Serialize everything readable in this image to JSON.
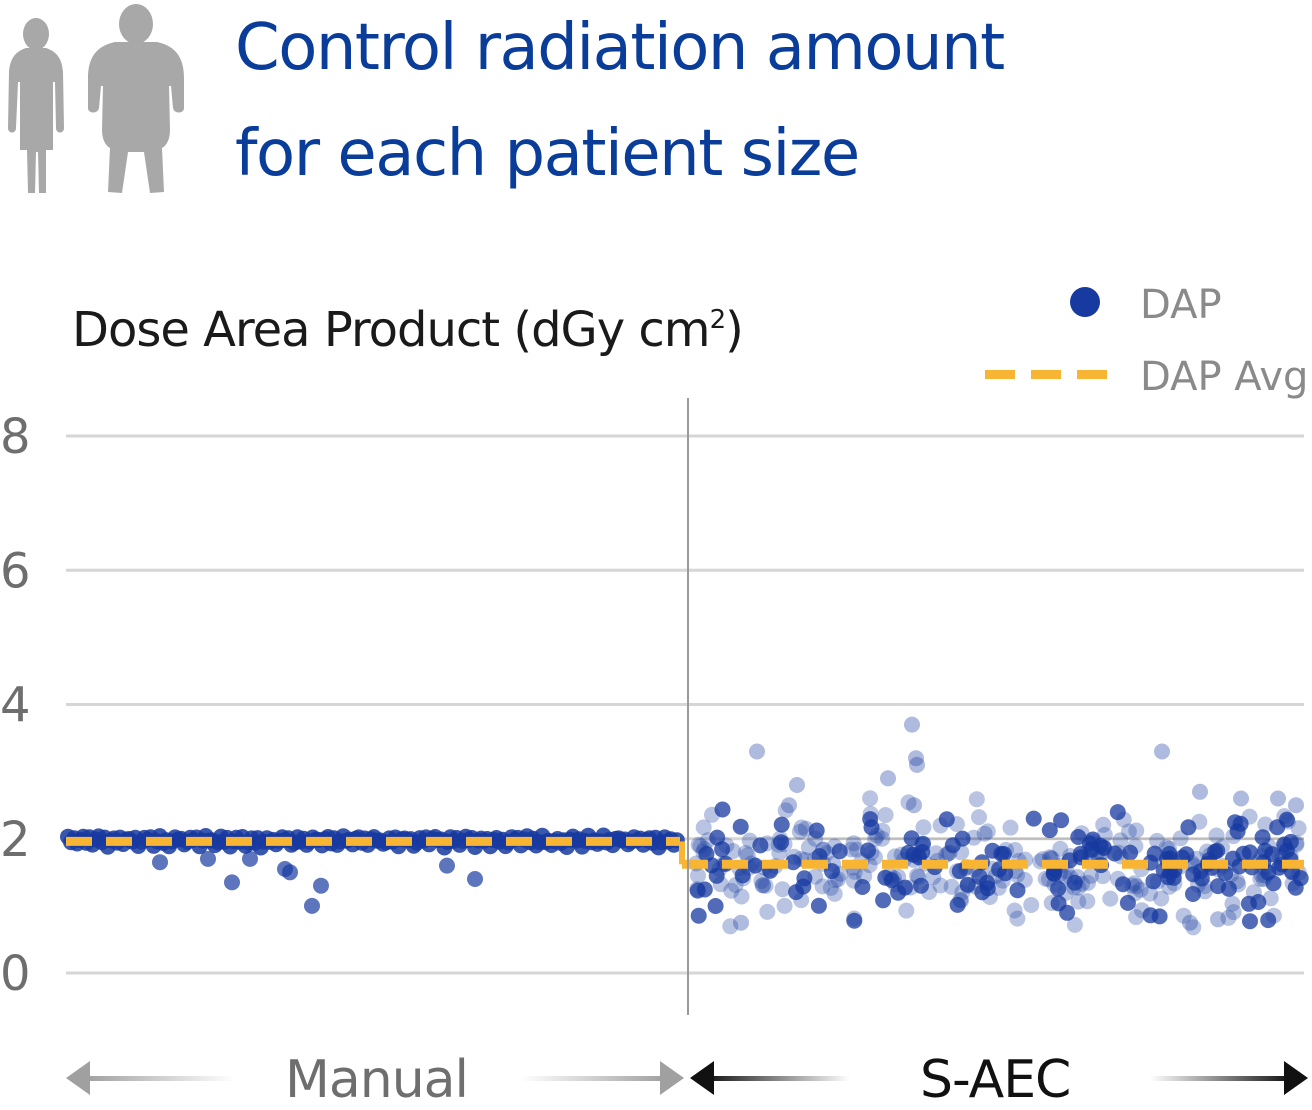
{
  "title": {
    "line1": "Control radiation amount",
    "line2": "for each patient size"
  },
  "icons": [
    "person-slim-icon",
    "person-large-icon"
  ],
  "colors": {
    "title": "#0a3d99",
    "dap_dot": "#173aa0",
    "dap_avg": "#f7b533",
    "grid": "#d6d6d6",
    "axis_text": "#6e6e6e",
    "manual_arrow": "#a0a0a0",
    "saec_arrow": "#111111"
  },
  "chart_data": {
    "type": "scatter",
    "ylabel": "Dose Area Product (dGy cm",
    "ylabel_superscript": "2",
    "ylabel_suffix": ")",
    "yticks": [
      0,
      2,
      4,
      6,
      8
    ],
    "ylim": [
      -0.55,
      8.6
    ],
    "grid": true,
    "legend": {
      "position": "top-right",
      "entries": [
        {
          "label": "DAP",
          "marker": "dot"
        },
        {
          "label": "DAP Avg.",
          "marker": "dashed-line"
        }
      ]
    },
    "groups": [
      {
        "label": "Manual",
        "n": 200,
        "avg": 1.96,
        "base": [
          2.02,
          1.96,
          2.0,
          1.9,
          1.97
        ],
        "outliers": [
          1.35,
          1.0,
          1.3,
          1.55,
          1.5,
          1.65,
          1.7,
          1.7,
          1.6,
          1.4
        ]
      },
      {
        "label": "S-AEC",
        "n": 200,
        "avg": 1.62,
        "outliers": [
          3.7,
          3.3,
          3.3,
          3.2,
          3.1,
          2.9,
          2.8,
          2.7,
          2.6,
          2.6,
          2.5,
          2.5,
          2.5,
          0.75,
          0.75,
          0.8
        ]
      }
    ]
  }
}
